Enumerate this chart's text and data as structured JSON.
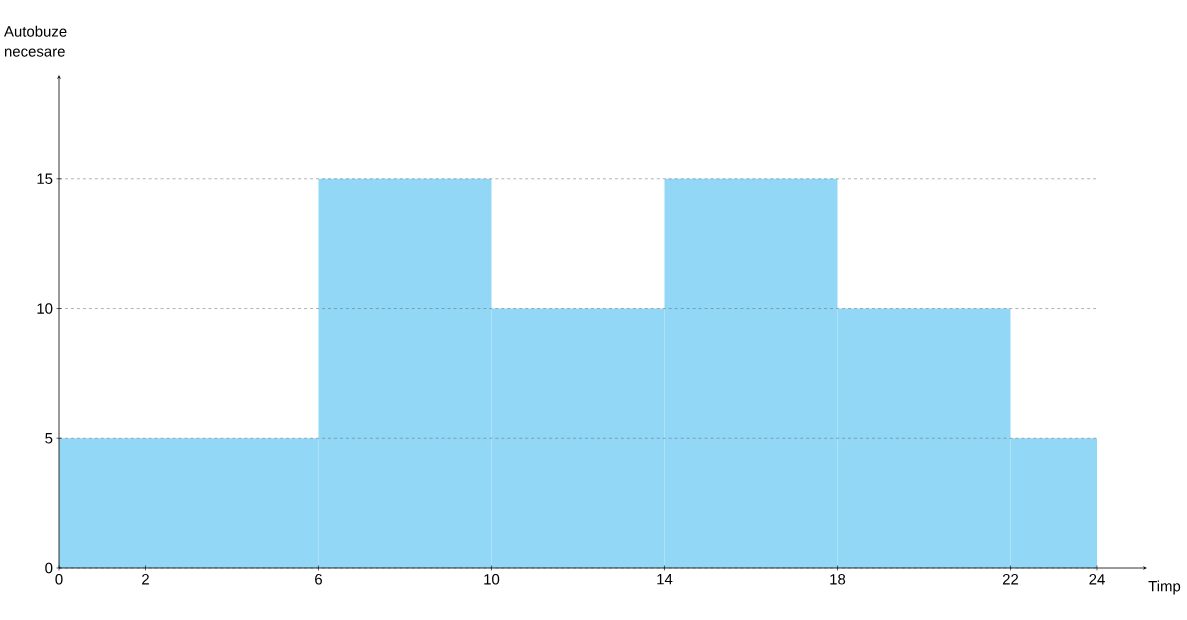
{
  "chart_data": {
    "type": "histogram",
    "xlabel": "Timp",
    "ylabel": "Autobuze necesare",
    "bins": [
      0,
      6,
      10,
      14,
      18,
      22,
      24
    ],
    "values": [
      5,
      15,
      10,
      15,
      10,
      5
    ],
    "color": "#92d7f5",
    "xlim": [
      0,
      24
    ],
    "ylim": [
      0,
      19
    ],
    "xticks": [
      0,
      2,
      6,
      10,
      14,
      18,
      22,
      24
    ],
    "yticks": [
      0,
      5,
      10,
      15
    ],
    "grid": "y",
    "line_style": "dashed"
  }
}
